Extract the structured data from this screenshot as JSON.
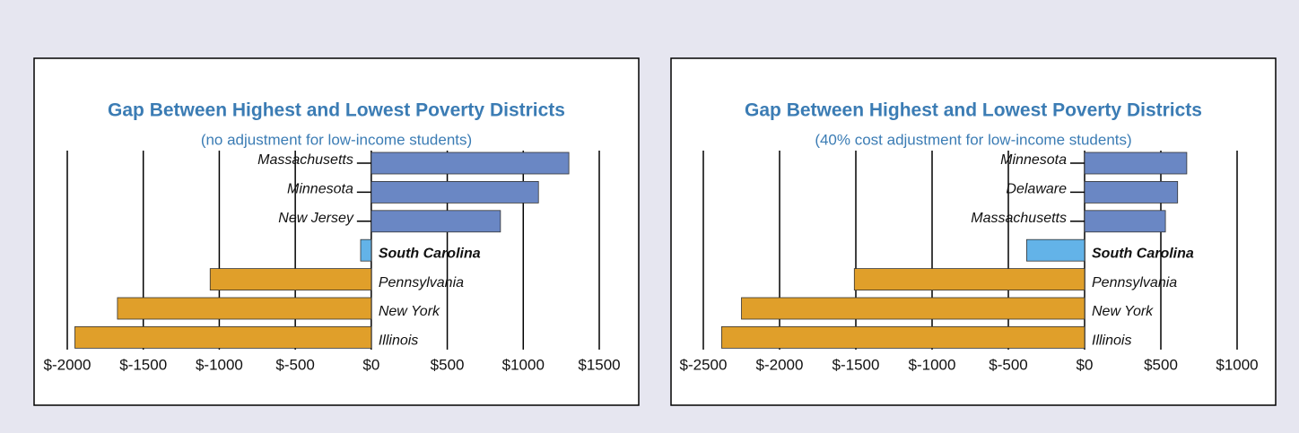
{
  "chart_data": [
    {
      "type": "bar",
      "orientation": "horizontal",
      "title": "Gap Between Highest and Lowest Poverty Districts",
      "subtitle": "(no adjustment for low-income students)",
      "categories": [
        "Massachusetts",
        "Minnesota",
        "New Jersey",
        "South Carolina",
        "Pennsylvania",
        "New York",
        "Illinois"
      ],
      "values": [
        1300,
        1100,
        850,
        -70,
        -1060,
        -1670,
        -1950
      ],
      "colors": [
        "#6a87c4",
        "#6a87c4",
        "#6a87c4",
        "#63b3e8",
        "#e09f2a",
        "#e09f2a",
        "#e09f2a"
      ],
      "highlight_index": 3,
      "xlim": [
        -2000,
        1500
      ],
      "xticks": [
        {
          "value": -2000,
          "label": "$-2000"
        },
        {
          "value": -1500,
          "label": "$-1500"
        },
        {
          "value": -1000,
          "label": "$-1000"
        },
        {
          "value": -500,
          "label": "$-500"
        },
        {
          "value": 0,
          "label": "$0"
        },
        {
          "value": 500,
          "label": "$500"
        },
        {
          "value": 1000,
          "label": "$1000"
        },
        {
          "value": 1500,
          "label": "$1500"
        }
      ],
      "grid": true
    },
    {
      "type": "bar",
      "orientation": "horizontal",
      "title": "Gap Between Highest and Lowest Poverty Districts",
      "subtitle": "(40% cost adjustment for low-income students)",
      "categories": [
        "Minnesota",
        "Delaware",
        "Massachusetts",
        "South Carolina",
        "Pennsylvania",
        "New York",
        "Illinois"
      ],
      "values": [
        670,
        610,
        530,
        -380,
        -1510,
        -2250,
        -2380
      ],
      "colors": [
        "#6a87c4",
        "#6a87c4",
        "#6a87c4",
        "#63b3e8",
        "#e09f2a",
        "#e09f2a",
        "#e09f2a"
      ],
      "highlight_index": 3,
      "xlim": [
        -2500,
        1000
      ],
      "xticks": [
        {
          "value": -2500,
          "label": "$-2500"
        },
        {
          "value": -2000,
          "label": "$-2000"
        },
        {
          "value": -1500,
          "label": "$-1500"
        },
        {
          "value": -1000,
          "label": "$-1000"
        },
        {
          "value": -500,
          "label": "$-500"
        },
        {
          "value": 0,
          "label": "$0"
        },
        {
          "value": 500,
          "label": "$500"
        },
        {
          "value": 1000,
          "label": "$1000"
        }
      ],
      "grid": true
    }
  ]
}
